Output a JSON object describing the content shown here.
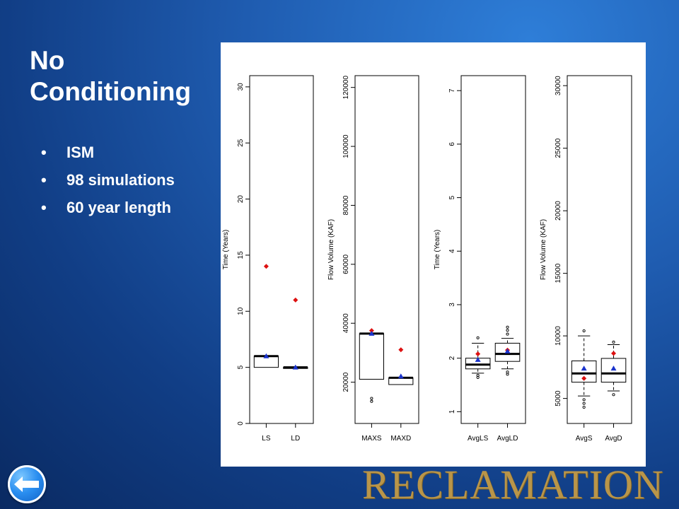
{
  "slide": {
    "title": "No Conditioning",
    "bullets": [
      "ISM",
      "98 simulations",
      "60 year length"
    ],
    "bullet_symbol": "•",
    "brand": "RECLAMATION",
    "back_icon": "back-arrow-icon",
    "colors": {
      "background": "#1f5cb0",
      "title": "#ffffff",
      "brand": "#b99549",
      "mean_marker": "#dd1111",
      "triangle_marker": "#1a33cc"
    }
  },
  "chart_data": [
    {
      "type": "boxplot",
      "ylabel": "Time (Years)",
      "ylim": [
        0,
        31
      ],
      "yticks": [
        0,
        5,
        10,
        15,
        20,
        25,
        30
      ],
      "categories": [
        "LS",
        "LD"
      ],
      "boxes": [
        {
          "q1": 5.0,
          "median": 6.0,
          "q3": 6.0,
          "whisker_low": 5.0,
          "whisker_high": 6.0,
          "outliers": []
        },
        {
          "q1": 4.9,
          "median": 5.0,
          "q3": 5.0,
          "whisker_low": 4.9,
          "whisker_high": 5.0,
          "outliers": []
        }
      ],
      "red_markers": [
        14.0,
        11.0
      ],
      "blue_markers": [
        6.0,
        5.0
      ]
    },
    {
      "type": "boxplot",
      "ylabel": "Flow Volume (KAF)",
      "ylim": [
        6000,
        124000
      ],
      "yticks": [
        20000,
        40000,
        60000,
        80000,
        100000,
        120000
      ],
      "categories": [
        "MAXS",
        "MAXD"
      ],
      "boxes": [
        {
          "q1": 21000,
          "median": 36500,
          "q3": 36500,
          "whisker_low": 21000,
          "whisker_high": 36500,
          "outliers": [
            13500,
            14500
          ]
        },
        {
          "q1": 19200,
          "median": 21500,
          "q3": 21500,
          "whisker_low": 19200,
          "whisker_high": 21500,
          "outliers": []
        }
      ],
      "red_markers": [
        37500,
        31000
      ],
      "blue_markers": [
        36500,
        22000
      ]
    },
    {
      "type": "boxplot",
      "ylabel": "Time (Years)",
      "ylim": [
        0.78,
        7.28
      ],
      "yticks": [
        1,
        2,
        3,
        4,
        5,
        6,
        7
      ],
      "categories": [
        "AvgLS",
        "AvgLD"
      ],
      "boxes": [
        {
          "q1": 1.8,
          "median": 1.88,
          "q3": 2.0,
          "whisker_low": 1.72,
          "whisker_high": 2.28,
          "outliers": [
            2.38,
            1.64,
            1.68
          ]
        },
        {
          "q1": 1.94,
          "median": 2.08,
          "q3": 2.28,
          "whisker_low": 1.8,
          "whisker_high": 2.37,
          "outliers": [
            2.45,
            2.52,
            2.58,
            1.7,
            1.74
          ]
        }
      ],
      "red_markers": [
        2.08,
        2.15
      ],
      "blue_markers": [
        1.97,
        2.13
      ]
    },
    {
      "type": "boxplot",
      "ylabel": "Flow Volume (KAF)",
      "ylim": [
        3000,
        30800
      ],
      "yticks": [
        5000,
        10000,
        15000,
        20000,
        25000,
        30000
      ],
      "categories": [
        "AvgS",
        "AvgD"
      ],
      "boxes": [
        {
          "q1": 6300,
          "median": 7000,
          "q3": 8000,
          "whisker_low": 5200,
          "whisker_high": 10000,
          "outliers": [
            10400,
            4900,
            4600,
            4300
          ]
        },
        {
          "q1": 6300,
          "median": 7000,
          "q3": 8200,
          "whisker_low": 5600,
          "whisker_high": 9300,
          "outliers": [
            9500,
            5300
          ]
        }
      ],
      "red_markers": [
        6600,
        8600
      ],
      "blue_markers": [
        7400,
        7400
      ]
    }
  ]
}
